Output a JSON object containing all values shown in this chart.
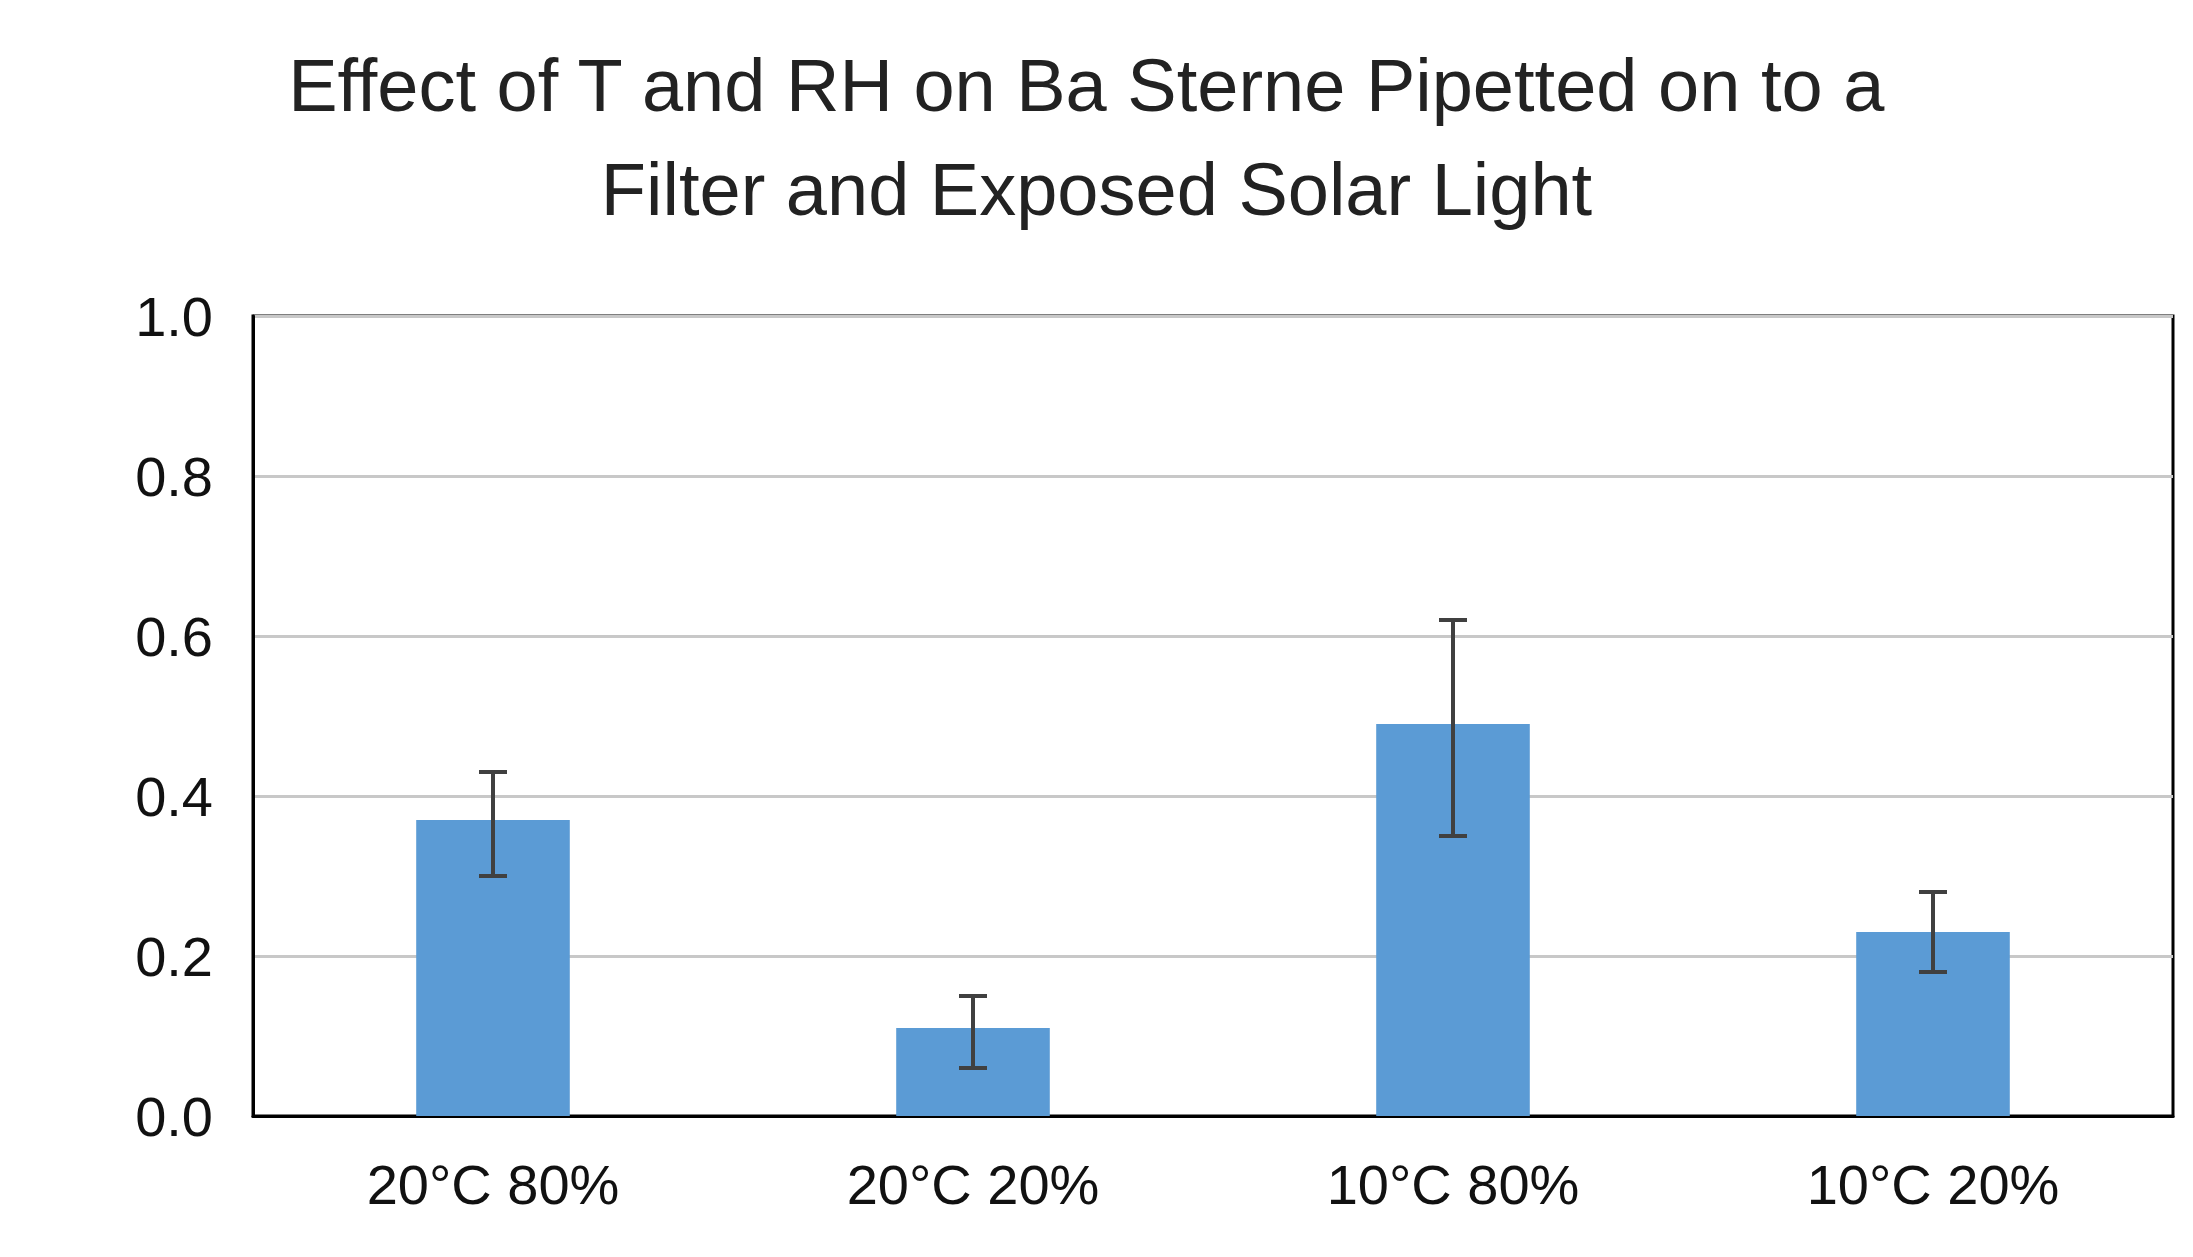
{
  "chart_data": {
    "type": "bar",
    "title": "Effect of T and RH on Ba Sterne Pipetted on to a Filter and Exposed Solar Light",
    "categories": [
      "20°C 80%",
      "20°C 20%",
      "10°C 80%",
      "10°C 20%"
    ],
    "values": [
      0.37,
      0.11,
      0.49,
      0.23
    ],
    "errors": [
      [
        0.3,
        0.43
      ],
      [
        0.06,
        0.15
      ],
      [
        0.35,
        0.62
      ],
      [
        0.18,
        0.28
      ]
    ],
    "color": "#5b9bd5",
    "ylim": [
      0,
      1
    ],
    "yticks": [
      {
        "value": 0,
        "label": "0.0"
      },
      {
        "value": 0.2,
        "label": "0.2"
      },
      {
        "value": 0.4,
        "label": "0.4"
      },
      {
        "value": 0.6,
        "label": "0.6"
      },
      {
        "value": 0.8,
        "label": "0.8"
      },
      {
        "value": 1,
        "label": "1.0"
      }
    ],
    "grid": "y"
  }
}
